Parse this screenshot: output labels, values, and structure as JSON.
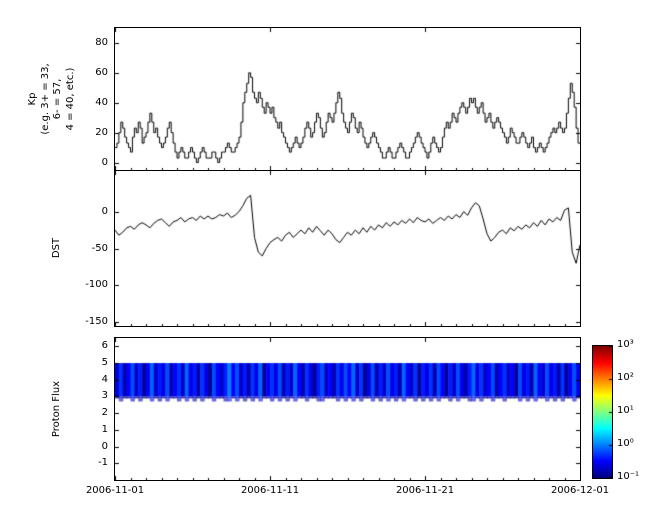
{
  "figure": {
    "background_color": "#ffffff",
    "line_color": "#000000",
    "colormap": "jet"
  },
  "x_axis": {
    "tick_labels": [
      "2006-11-01",
      "2006-11-11",
      "2006-11-21",
      "2006-12-01"
    ],
    "tick_days": [
      0,
      10,
      20,
      30
    ],
    "range_days": [
      0,
      30
    ]
  },
  "colorbar": {
    "tick_labels": [
      "10³",
      "10²",
      "10¹",
      "10⁰",
      "10⁻¹"
    ],
    "tick_values": [
      3,
      2,
      1,
      0,
      -1
    ],
    "range": [
      -1,
      3
    ]
  },
  "chart_data": [
    {
      "id": "kp",
      "type": "line",
      "style": "steps",
      "ylabel": "Kp\n(e.g. 3+ = 33,\n6- = 57,\n4 = 40, etc.)",
      "ylim": [
        -5,
        90
      ],
      "yticks": [
        0,
        20,
        40,
        60,
        80
      ],
      "x_step_days": 0.125,
      "values": [
        10,
        13,
        20,
        27,
        23,
        17,
        13,
        10,
        7,
        17,
        23,
        20,
        27,
        23,
        13,
        17,
        20,
        27,
        33,
        27,
        20,
        23,
        17,
        13,
        10,
        13,
        17,
        23,
        27,
        20,
        13,
        7,
        3,
        7,
        10,
        7,
        3,
        3,
        7,
        10,
        7,
        3,
        0,
        3,
        7,
        10,
        7,
        3,
        3,
        3,
        7,
        7,
        3,
        0,
        3,
        7,
        7,
        10,
        13,
        10,
        7,
        7,
        10,
        13,
        17,
        27,
        40,
        47,
        53,
        60,
        57,
        47,
        43,
        40,
        47,
        43,
        37,
        33,
        40,
        37,
        33,
        37,
        30,
        27,
        23,
        27,
        20,
        17,
        13,
        10,
        7,
        10,
        13,
        17,
        13,
        10,
        13,
        17,
        23,
        27,
        23,
        17,
        20,
        27,
        33,
        30,
        23,
        17,
        20,
        27,
        33,
        30,
        27,
        33,
        40,
        47,
        43,
        33,
        27,
        23,
        20,
        27,
        33,
        30,
        23,
        20,
        27,
        23,
        17,
        13,
        10,
        13,
        17,
        20,
        17,
        13,
        10,
        7,
        3,
        3,
        7,
        10,
        7,
        3,
        3,
        7,
        10,
        13,
        10,
        7,
        3,
        3,
        7,
        10,
        13,
        17,
        20,
        17,
        13,
        10,
        7,
        3,
        7,
        13,
        17,
        13,
        10,
        7,
        10,
        17,
        23,
        27,
        23,
        27,
        33,
        30,
        27,
        33,
        37,
        40,
        37,
        33,
        37,
        43,
        40,
        43,
        37,
        33,
        37,
        40,
        33,
        27,
        30,
        33,
        27,
        23,
        27,
        30,
        27,
        23,
        20,
        17,
        13,
        17,
        23,
        20,
        17,
        13,
        13,
        17,
        20,
        17,
        13,
        10,
        13,
        17,
        10,
        7,
        10,
        13,
        10,
        7,
        10,
        13,
        17,
        20,
        23,
        20,
        23,
        27,
        23,
        20,
        23,
        33,
        43,
        53,
        47,
        37,
        23,
        13
      ]
    },
    {
      "id": "dst",
      "type": "line",
      "style": "line",
      "ylabel": "DST",
      "ylim": [
        -155,
        55
      ],
      "yticks": [
        0,
        -50,
        -100,
        -150
      ],
      "x_step_days": 0.25,
      "values": [
        -25,
        -32,
        -28,
        -22,
        -20,
        -24,
        -18,
        -15,
        -18,
        -22,
        -16,
        -12,
        -10,
        -15,
        -20,
        -14,
        -12,
        -8,
        -14,
        -10,
        -8,
        -12,
        -6,
        -10,
        -6,
        -10,
        -8,
        -4,
        -6,
        -2,
        -8,
        -5,
        0,
        8,
        18,
        22,
        -35,
        -55,
        -60,
        -50,
        -42,
        -38,
        -35,
        -40,
        -32,
        -28,
        -35,
        -30,
        -25,
        -30,
        -22,
        -28,
        -20,
        -26,
        -32,
        -25,
        -30,
        -38,
        -42,
        -35,
        -28,
        -32,
        -25,
        -30,
        -22,
        -28,
        -20,
        -25,
        -18,
        -22,
        -15,
        -20,
        -14,
        -18,
        -12,
        -16,
        -10,
        -15,
        -8,
        -12,
        -14,
        -10,
        -16,
        -12,
        -8,
        -12,
        -6,
        -10,
        -4,
        -8,
        0,
        -5,
        5,
        12,
        8,
        -10,
        -30,
        -40,
        -35,
        -28,
        -25,
        -30,
        -22,
        -26,
        -20,
        -24,
        -18,
        -22,
        -15,
        -20,
        -12,
        -18,
        -10,
        -14,
        -8,
        -12,
        2,
        5,
        -55,
        -70,
        -45
      ]
    },
    {
      "id": "proton",
      "type": "heatmap",
      "ylabel": "Proton Flux",
      "ylim": [
        -2,
        6.5
      ],
      "yticks": [
        -1,
        0,
        1,
        2,
        3,
        4,
        5,
        6
      ],
      "band_ymin": 3.0,
      "band_ymax": 5.0,
      "log_color_range": [
        -1,
        3
      ],
      "column_log_flux": [
        -0.6,
        -0.3,
        -0.8,
        -0.5,
        -0.2,
        -0.7,
        -0.4,
        -0.9,
        -0.5,
        -0.1,
        -0.7,
        -0.4,
        -0.6,
        -0.2,
        -0.8,
        -0.5,
        -0.3,
        -0.7,
        -0.1,
        -0.6,
        -0.4,
        -0.8,
        -0.3,
        -0.6,
        -0.9,
        -0.2,
        -0.5,
        -0.7,
        -0.4,
        0.0,
        -0.5,
        -0.2,
        -0.7,
        -0.4,
        -0.8,
        -0.3,
        -0.6,
        -0.1,
        -0.9,
        -0.5,
        -0.3,
        -0.6,
        -0.2,
        -0.8,
        -0.4,
        -0.7,
        -0.1,
        -0.5,
        -0.8,
        -0.3,
        -0.6,
        -0.9,
        -0.4,
        -0.2,
        -0.7,
        -0.5,
        -0.8,
        -0.3,
        -0.6,
        -0.2,
        -0.5,
        -0.1,
        -0.7,
        -0.3,
        -0.9,
        -0.6,
        -0.2,
        -0.8,
        -0.4,
        -0.7,
        -0.2,
        -0.6,
        -0.4,
        -0.8,
        -0.1,
        -0.5,
        -0.7,
        -0.3,
        -0.9,
        -0.4,
        -0.6,
        -0.3,
        -0.8,
        -0.2,
        -0.5,
        -0.9,
        -0.4,
        -0.7,
        -0.2,
        -0.6,
        -0.8,
        -0.4,
        -0.1,
        -0.6,
        -0.3,
        -0.7,
        -0.5,
        -0.2,
        -0.8,
        -0.5,
        -0.3,
        -0.7,
        -0.5,
        -0.9,
        -0.2,
        -0.6,
        -0.4,
        -0.8,
        -0.1,
        -0.5,
        -0.7,
        -0.2,
        -0.6,
        -0.4,
        -0.8,
        -0.3,
        -0.9,
        -0.5,
        -0.2,
        -0.6
      ]
    }
  ]
}
